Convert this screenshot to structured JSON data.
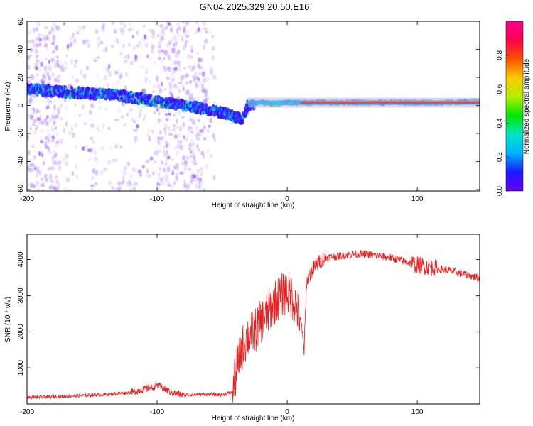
{
  "title": "GN04.2025.329.20.50.E16",
  "colors": {
    "snr_line": "#e8201f",
    "axis": "#000000",
    "colorbar": [
      "#6a00ff",
      "#1a1aff",
      "#00b4ff",
      "#00e6c8",
      "#00e600",
      "#b4f000",
      "#ffc800",
      "#ff5000",
      "#ff0050",
      "#ff0090"
    ]
  },
  "chart_data": [
    {
      "type": "heatmap",
      "name": "spectrogram",
      "xlabel": "Height of straight line (km)",
      "ylabel": "Frequency (Hz)",
      "xlim": [
        -200,
        148
      ],
      "ylim": [
        -61,
        60
      ],
      "xticks": [
        -200,
        -100,
        0,
        100
      ],
      "yticks": [
        -60,
        -40,
        -20,
        0,
        20,
        40,
        60
      ],
      "colorbar": {
        "label": "Normalized spectral amplitude",
        "range": [
          0,
          1
        ],
        "ticks": [
          0.0,
          0.2,
          0.4,
          0.6,
          0.8
        ]
      },
      "dominant_frequency_ridge": {
        "x": [
          -200,
          -180,
          -160,
          -140,
          -120,
          -100,
          -80,
          -60,
          -45,
          -35,
          -30,
          -20,
          -10,
          0,
          20,
          50,
          80,
          100,
          120,
          148
        ],
        "y": [
          12,
          10,
          9,
          8,
          6,
          3,
          0,
          -3,
          -6,
          -10,
          0,
          2,
          1,
          2,
          2,
          2,
          2,
          2,
          2,
          3
        ]
      }
    },
    {
      "type": "line",
      "name": "snr",
      "xlabel": "Height of straight line (km)",
      "ylabel": "SNR (10 * v/v)",
      "xlim": [
        -200,
        148
      ],
      "ylim": [
        0,
        4700
      ],
      "xticks": [
        -200,
        -100,
        0,
        100
      ],
      "yticks": [
        1000,
        2000,
        3000,
        4000
      ],
      "x": [
        -200,
        -180,
        -160,
        -140,
        -120,
        -105,
        -100,
        -90,
        -80,
        -70,
        -60,
        -50,
        -42,
        -38,
        -34,
        -30,
        -25,
        -20,
        -15,
        -10,
        -5,
        0,
        5,
        10,
        13,
        15,
        20,
        25,
        30,
        40,
        50,
        60,
        70,
        80,
        90,
        100,
        108,
        115,
        125,
        135,
        148
      ],
      "y": [
        180,
        200,
        230,
        260,
        320,
        450,
        520,
        330,
        250,
        260,
        270,
        250,
        330,
        1100,
        1600,
        1900,
        2000,
        2300,
        2500,
        2800,
        3000,
        3100,
        2900,
        2400,
        1500,
        3400,
        3750,
        3950,
        4050,
        4100,
        4150,
        4150,
        4100,
        4050,
        3950,
        3850,
        3800,
        3750,
        3700,
        3600,
        3480
      ]
    }
  ]
}
